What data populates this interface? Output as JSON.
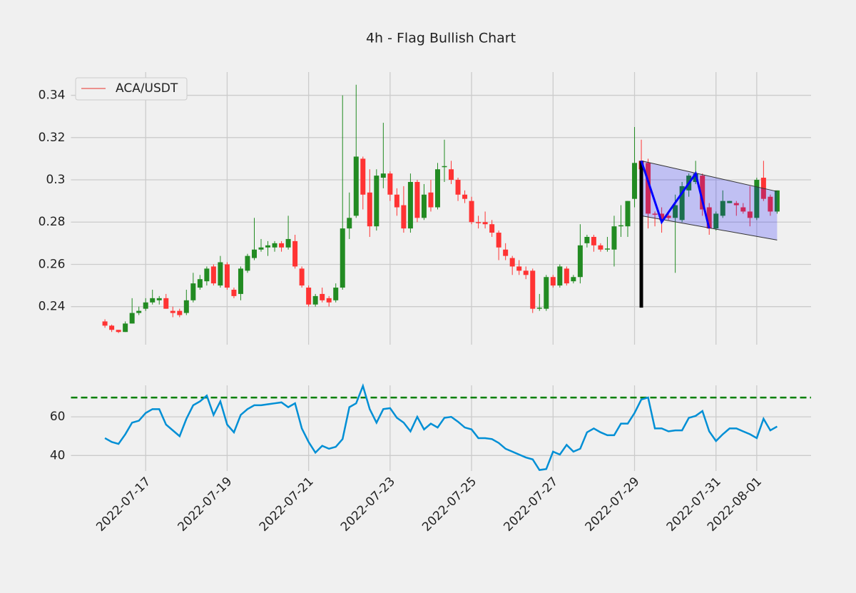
{
  "chart_data": [
    {
      "type": "candlestick",
      "title": "4h - Flag Bullish Chart",
      "series_name": "ACA/USDT",
      "legend_color": "#e8322d",
      "legend": "upper left",
      "up_color": "#228b22",
      "down_color": "#ff3333",
      "x": [
        "2022-07-16 00:00",
        "2022-07-16 04:00",
        "2022-07-16 08:00",
        "2022-07-16 12:00",
        "2022-07-16 16:00",
        "2022-07-16 20:00",
        "2022-07-17 00:00",
        "2022-07-17 04:00",
        "2022-07-17 08:00",
        "2022-07-17 12:00",
        "2022-07-17 16:00",
        "2022-07-17 20:00",
        "2022-07-18 00:00",
        "2022-07-18 04:00",
        "2022-07-18 08:00",
        "2022-07-18 12:00",
        "2022-07-18 16:00",
        "2022-07-18 20:00",
        "2022-07-19 00:00",
        "2022-07-19 04:00",
        "2022-07-19 08:00",
        "2022-07-19 12:00",
        "2022-07-19 16:00",
        "2022-07-19 20:00",
        "2022-07-20 00:00",
        "2022-07-20 04:00",
        "2022-07-20 08:00",
        "2022-07-20 12:00",
        "2022-07-20 16:00",
        "2022-07-20 20:00",
        "2022-07-21 00:00",
        "2022-07-21 04:00",
        "2022-07-21 08:00",
        "2022-07-21 12:00",
        "2022-07-21 16:00",
        "2022-07-21 20:00",
        "2022-07-22 00:00",
        "2022-07-22 04:00",
        "2022-07-22 08:00",
        "2022-07-22 12:00",
        "2022-07-22 16:00",
        "2022-07-22 20:00",
        "2022-07-23 00:00",
        "2022-07-23 04:00",
        "2022-07-23 08:00",
        "2022-07-23 12:00",
        "2022-07-23 16:00",
        "2022-07-23 20:00",
        "2022-07-24 00:00",
        "2022-07-24 04:00",
        "2022-07-24 08:00",
        "2022-07-24 12:00",
        "2022-07-24 16:00",
        "2022-07-24 20:00",
        "2022-07-25 00:00",
        "2022-07-25 04:00",
        "2022-07-25 08:00",
        "2022-07-25 12:00",
        "2022-07-25 16:00",
        "2022-07-25 20:00",
        "2022-07-26 00:00",
        "2022-07-26 04:00",
        "2022-07-26 08:00",
        "2022-07-26 12:00",
        "2022-07-26 16:00",
        "2022-07-26 20:00",
        "2022-07-27 00:00",
        "2022-07-27 04:00",
        "2022-07-27 08:00",
        "2022-07-27 12:00",
        "2022-07-27 16:00",
        "2022-07-27 20:00",
        "2022-07-28 00:00",
        "2022-07-28 04:00",
        "2022-07-28 08:00",
        "2022-07-28 12:00",
        "2022-07-28 16:00",
        "2022-07-28 20:00",
        "2022-07-29 00:00",
        "2022-07-29 04:00",
        "2022-07-29 08:00",
        "2022-07-29 12:00",
        "2022-07-29 16:00",
        "2022-07-29 20:00",
        "2022-07-30 00:00",
        "2022-07-30 04:00",
        "2022-07-30 08:00",
        "2022-07-30 12:00",
        "2022-07-30 16:00",
        "2022-07-30 20:00",
        "2022-07-31 00:00",
        "2022-07-31 04:00",
        "2022-07-31 08:00",
        "2022-07-31 12:00",
        "2022-07-31 16:00",
        "2022-07-31 20:00",
        "2022-08-01 00:00",
        "2022-08-01 04:00",
        "2022-08-01 08:00",
        "2022-08-01 12:00"
      ],
      "open": [
        0.233,
        0.231,
        0.229,
        0.228,
        0.232,
        0.237,
        0.239,
        0.242,
        0.243,
        0.244,
        0.238,
        0.238,
        0.237,
        0.243,
        0.249,
        0.252,
        0.259,
        0.25,
        0.26,
        0.248,
        0.246,
        0.257,
        0.263,
        0.267,
        0.268,
        0.268,
        0.27,
        0.268,
        0.271,
        0.258,
        0.249,
        0.241,
        0.246,
        0.244,
        0.243,
        0.249,
        0.277,
        0.283,
        0.31,
        0.294,
        0.278,
        0.301,
        0.303,
        0.293,
        0.288,
        0.277,
        0.299,
        0.282,
        0.294,
        0.287,
        0.306,
        0.305,
        0.3,
        0.293,
        0.29,
        0.28,
        0.28,
        0.279,
        0.275,
        0.267,
        0.263,
        0.259,
        0.257,
        0.257,
        0.239,
        0.239,
        0.254,
        0.25,
        0.258,
        0.252,
        0.254,
        0.27,
        0.273,
        0.269,
        0.267,
        0.267,
        0.278,
        0.278,
        0.291,
        0.309,
        0.308,
        0.284,
        0.284,
        0.283,
        0.282,
        0.281,
        0.295,
        0.299,
        0.302,
        0.287,
        0.277,
        0.283,
        0.289,
        0.289,
        0.287,
        0.285,
        0.282,
        0.301,
        0.292,
        0.285
      ],
      "high": [
        0.234,
        0.2315,
        0.229,
        0.233,
        0.244,
        0.24,
        0.244,
        0.248,
        0.245,
        0.246,
        0.24,
        0.239,
        0.248,
        0.256,
        0.255,
        0.259,
        0.26,
        0.264,
        0.261,
        0.249,
        0.259,
        0.265,
        0.282,
        0.272,
        0.271,
        0.271,
        0.271,
        0.283,
        0.274,
        0.259,
        0.25,
        0.246,
        0.249,
        0.245,
        0.251,
        0.34,
        0.294,
        0.345,
        0.311,
        0.305,
        0.305,
        0.327,
        0.304,
        0.296,
        0.297,
        0.303,
        0.3,
        0.298,
        0.3,
        0.308,
        0.319,
        0.309,
        0.301,
        0.295,
        0.292,
        0.283,
        0.285,
        0.281,
        0.276,
        0.27,
        0.264,
        0.262,
        0.259,
        0.258,
        0.246,
        0.255,
        0.255,
        0.26,
        0.259,
        0.255,
        0.279,
        0.274,
        0.274,
        0.27,
        0.273,
        0.283,
        0.288,
        0.29,
        0.325,
        0.319,
        0.31,
        0.285,
        0.287,
        0.284,
        0.293,
        0.299,
        0.303,
        0.309,
        0.303,
        0.289,
        0.285,
        0.295,
        0.29,
        0.29,
        0.289,
        0.297,
        0.301,
        0.309,
        0.293,
        0.295
      ],
      "low": [
        0.23,
        0.228,
        0.2275,
        0.228,
        0.232,
        0.236,
        0.238,
        0.241,
        0.241,
        0.239,
        0.235,
        0.235,
        0.236,
        0.242,
        0.248,
        0.25,
        0.25,
        0.249,
        0.248,
        0.244,
        0.243,
        0.256,
        0.262,
        0.266,
        0.264,
        0.266,
        0.266,
        0.267,
        0.258,
        0.249,
        0.24,
        0.24,
        0.242,
        0.24,
        0.242,
        0.248,
        0.272,
        0.282,
        0.286,
        0.273,
        0.276,
        0.296,
        0.29,
        0.283,
        0.275,
        0.275,
        0.28,
        0.281,
        0.285,
        0.286,
        0.299,
        0.298,
        0.29,
        0.289,
        0.279,
        0.277,
        0.277,
        0.273,
        0.262,
        0.262,
        0.255,
        0.255,
        0.253,
        0.237,
        0.238,
        0.238,
        0.249,
        0.249,
        0.25,
        0.251,
        0.251,
        0.268,
        0.266,
        0.266,
        0.266,
        0.259,
        0.273,
        0.273,
        0.287,
        0.3,
        0.277,
        0.278,
        0.275,
        0.281,
        0.256,
        0.28,
        0.292,
        0.298,
        0.283,
        0.274,
        0.276,
        0.282,
        0.289,
        0.283,
        0.284,
        0.278,
        0.281,
        0.29,
        0.283,
        0.284
      ],
      "close": [
        0.231,
        0.229,
        0.228,
        0.232,
        0.237,
        0.238,
        0.242,
        0.244,
        0.244,
        0.239,
        0.237,
        0.236,
        0.243,
        0.251,
        0.253,
        0.258,
        0.251,
        0.261,
        0.249,
        0.245,
        0.258,
        0.264,
        0.267,
        0.268,
        0.269,
        0.27,
        0.268,
        0.272,
        0.259,
        0.25,
        0.241,
        0.245,
        0.243,
        0.242,
        0.249,
        0.277,
        0.282,
        0.311,
        0.293,
        0.278,
        0.302,
        0.303,
        0.293,
        0.287,
        0.277,
        0.299,
        0.282,
        0.293,
        0.287,
        0.305,
        0.3065,
        0.3,
        0.293,
        0.291,
        0.28,
        0.2795,
        0.279,
        0.275,
        0.268,
        0.264,
        0.259,
        0.257,
        0.255,
        0.239,
        0.2395,
        0.254,
        0.25,
        0.259,
        0.251,
        0.254,
        0.269,
        0.273,
        0.269,
        0.267,
        0.2675,
        0.278,
        0.2785,
        0.29,
        0.308,
        0.305,
        0.284,
        0.2835,
        0.281,
        0.282,
        0.288,
        0.297,
        0.302,
        0.303,
        0.286,
        0.277,
        0.284,
        0.29,
        0.29,
        0.288,
        0.285,
        0.282,
        0.3,
        0.291,
        0.285,
        0.295
      ],
      "pole": {
        "x": [
          "2022-07-29 04:00",
          "2022-07-29 04:00"
        ],
        "y": [
          0.2395,
          0.309
        ],
        "color": "#000000"
      },
      "flag_zigzag": {
        "x": [
          "2022-07-29 04:00",
          "2022-07-29 16:00",
          "2022-07-30 12:00",
          "2022-07-30 20:00"
        ],
        "y": [
          0.309,
          0.28,
          0.303,
          0.277
        ],
        "color": "#0000ff"
      },
      "flag_channel": {
        "color": "#0000ff",
        "upper": {
          "x": [
            "2022-07-29 04:00",
            "2022-08-01 12:00"
          ],
          "y": [
            0.309,
            0.2945
          ]
        },
        "lower": {
          "x": [
            "2022-07-29 04:00",
            "2022-08-01 12:00"
          ],
          "y": [
            0.283,
            0.2715
          ]
        }
      },
      "xlim": [
        "2022-07-15 04:00",
        "2022-08-02 08:00"
      ],
      "xticks": [
        "2022-07-17",
        "2022-07-19",
        "2022-07-21",
        "2022-07-23",
        "2022-07-25",
        "2022-07-27",
        "2022-07-29",
        "2022-07-31",
        "2022-08-01"
      ],
      "ylim": [
        0.222,
        0.351
      ],
      "yticks": [
        0.24,
        0.26,
        0.28,
        0.3,
        0.32,
        0.34
      ],
      "grid": true
    },
    {
      "type": "line",
      "color": "#008fd5",
      "values": [
        49,
        47,
        46,
        51,
        57,
        58,
        62,
        64,
        64,
        56,
        53,
        50,
        59,
        66,
        68,
        71,
        61,
        68,
        56,
        52,
        61,
        64,
        66,
        66,
        66.5,
        67,
        67.5,
        65,
        67,
        54,
        47,
        41.5,
        45,
        43.5,
        44.5,
        48.5,
        65,
        67,
        76,
        64,
        57,
        64,
        64.5,
        59.5,
        57,
        52.5,
        60,
        53.5,
        56.5,
        54.5,
        59.5,
        60,
        57.5,
        54.5,
        53.5,
        49,
        49,
        48.5,
        46.5,
        43.5,
        42,
        40.5,
        39,
        38,
        32.5,
        33,
        42,
        40.5,
        45.5,
        42,
        43.5,
        52,
        54,
        52,
        50.5,
        50.5,
        56.5,
        56.5,
        62,
        69,
        70,
        54,
        54,
        52.5,
        53,
        53,
        59.5,
        60.5,
        63,
        52.5,
        47.5,
        51,
        54,
        54,
        52.5,
        51,
        49,
        59,
        53,
        55
      ],
      "threshold": 70,
      "threshold_color": "#008000",
      "ylim": [
        32,
        76.3
      ],
      "yticks": [
        40,
        60
      ],
      "grid": true
    }
  ]
}
